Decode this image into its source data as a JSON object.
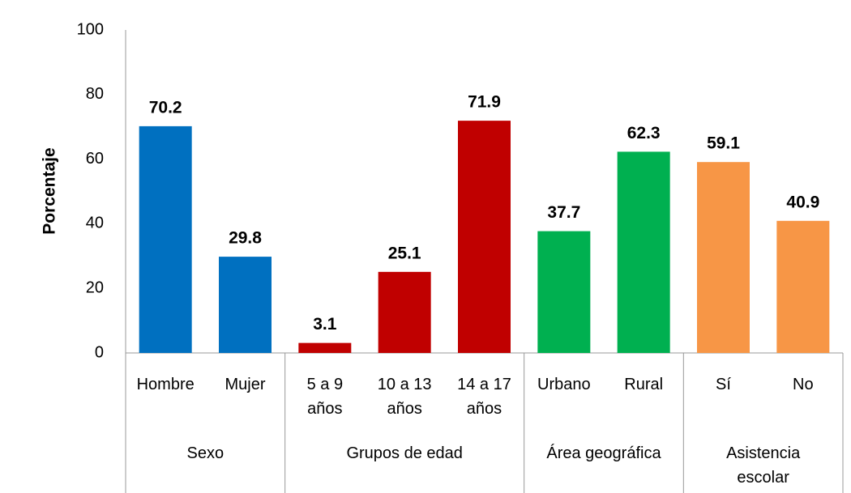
{
  "chart_data": {
    "type": "bar",
    "y_label": "Porcentaje",
    "ylim": [
      0,
      100
    ],
    "yticks": [
      0,
      20,
      40,
      60,
      80,
      100
    ],
    "grid": false,
    "groups": [
      {
        "name": "Sexo",
        "color": "#0070c0",
        "categories": [
          "Hombre",
          "Mujer"
        ],
        "values": [
          70.2,
          29.8
        ]
      },
      {
        "name": "Grupos de edad",
        "color": "#c00000",
        "categories": [
          "5 a 9 años",
          "10 a 13 años",
          "14 a 17 años"
        ],
        "values": [
          3.1,
          25.1,
          71.9
        ]
      },
      {
        "name": "Área geográfica",
        "color": "#00b050",
        "categories": [
          "Urbano",
          "Rural"
        ],
        "values": [
          37.7,
          62.3
        ]
      },
      {
        "name": "Asistencia escolar",
        "color": "#f79646",
        "categories": [
          "Sí",
          "No"
        ],
        "values": [
          59.1,
          40.9
        ]
      }
    ]
  }
}
